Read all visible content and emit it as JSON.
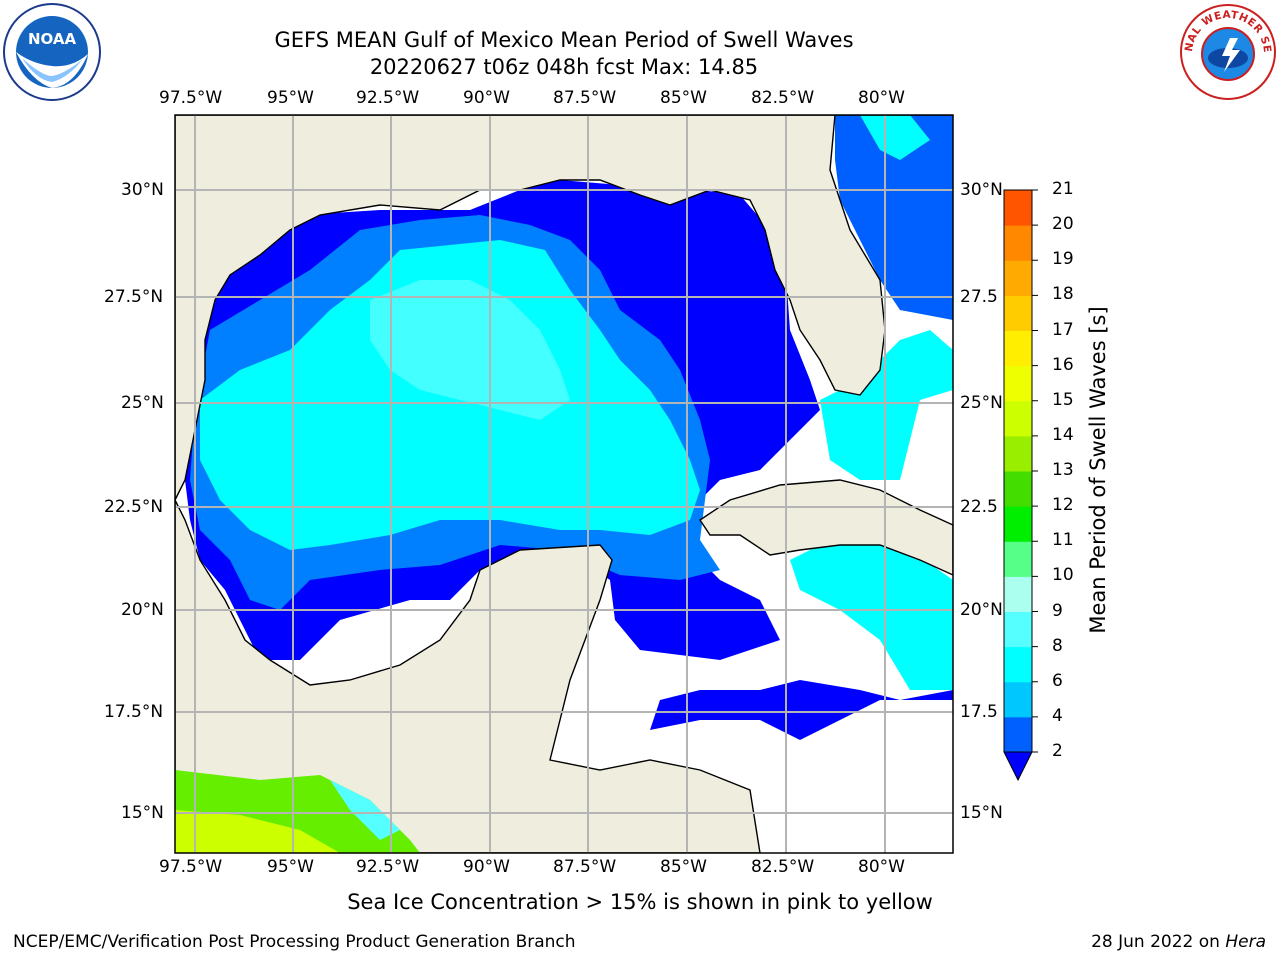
{
  "title": {
    "line1": "GEFS MEAN Gulf of Mexico Mean Period of Swell Waves",
    "line2": "20220627 t06z 048h fcst   Max: 14.85"
  },
  "map": {
    "lon_labels": [
      "97.5°W",
      "95°W",
      "92.5°W",
      "90°W",
      "87.5°W",
      "85°W",
      "82.5°W",
      "80°W"
    ],
    "lat_labels_left": [
      "30°N",
      "27.5°N",
      "25°N",
      "22.5°N",
      "20°N",
      "17.5°N",
      "15°N"
    ],
    "lat_labels_right": [
      "30°N",
      "27.5",
      "25°N",
      "22.5",
      "20°N",
      "17.5",
      "15°N"
    ],
    "gridlines": true,
    "land_color": "#eeedde",
    "sea_nodata_color": "#ffffff"
  },
  "colorbar": {
    "title": "Mean Period of Swell Waves [s]",
    "ticks": [
      "2",
      "4",
      "6",
      "8",
      "9",
      "10",
      "11",
      "12",
      "13",
      "14",
      "15",
      "16",
      "17",
      "18",
      "19",
      "20",
      "21"
    ],
    "colors": [
      "#0060ff",
      "#00c8ff",
      "#00ffff",
      "#55ffff",
      "#aaffee",
      "#55ff88",
      "#00ee00",
      "#44dd00",
      "#99ee00",
      "#ccff00",
      "#eeff00",
      "#ffee00",
      "#ffcc00",
      "#ffaa00",
      "#ff8800",
      "#ff5500",
      "#ff2200",
      "#ff0000"
    ],
    "extend_color": "#0000ff"
  },
  "ice_note": "Sea Ice Concentration > 15% is shown in pink to yellow",
  "footer": {
    "left": "NCEP/EMC/Verification Post Processing Product Generation Branch",
    "right_date": "28 Jun 2022 on ",
    "right_host": "Hera"
  },
  "logos": {
    "left": "noaa-logo",
    "right": "national-weather-service-logo",
    "right_text": "NATIONAL WEATHER SERVICE"
  }
}
